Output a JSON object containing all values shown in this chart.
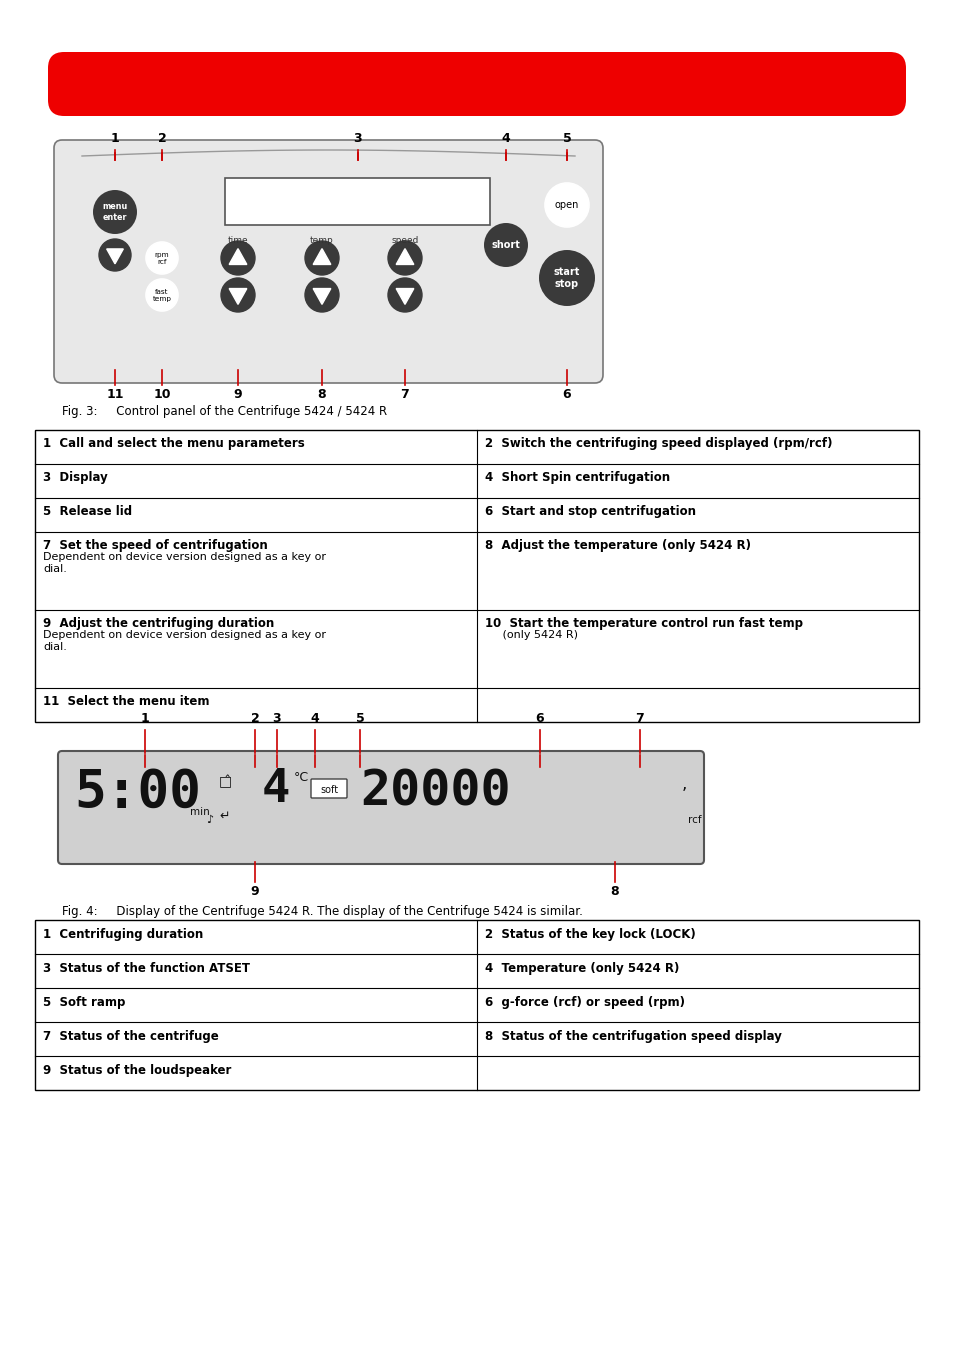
{
  "red_bar_color": "#EE0000",
  "bg_color": "#ffffff",
  "table1_rows": [
    [
      "1  Call and select the menu parameters",
      "2  Switch the centrifuging speed displayed (rpm/rcf)"
    ],
    [
      "3  Display",
      "4  Short Spin centrifugation"
    ],
    [
      "5  Release lid",
      "6  Start and stop centrifugation"
    ],
    [
      "7  Set the speed of centrifugation\nDependent on device version designed as a key or\ndial.",
      "8  Adjust the temperature (only 5424 R)"
    ],
    [
      "9  Adjust the centrifuging duration\nDependent on device version designed as a key or\ndial.",
      "10  Start the temperature control run fast temp\n     (only 5424 R)"
    ],
    [
      "11  Select the menu item",
      ""
    ]
  ],
  "table2_rows": [
    [
      "1  Centrifuging duration",
      "2  Status of the key lock (LOCK)"
    ],
    [
      "3  Status of the function ATSET",
      "4  Temperature (only 5424 R)"
    ],
    [
      "5  Soft ramp",
      "6  g-force (rcf) or speed (rpm)"
    ],
    [
      "7  Status of the centrifuge",
      "8  Status of the centrifugation speed display"
    ],
    [
      "9  Status of the loudspeaker",
      ""
    ]
  ],
  "fig3_caption": "Fig. 3:     Control panel of the Centrifuge 5424 / 5424 R",
  "fig4_caption": "Fig. 4:     Display of the Centrifuge 5424 R. The display of the Centrifuge 5424 is similar.",
  "panel_label_color": "#CC0000",
  "panel_bg": "#e8e8e8",
  "btn_color": "#3a3a3a",
  "display_bg": "#d0d0d0"
}
